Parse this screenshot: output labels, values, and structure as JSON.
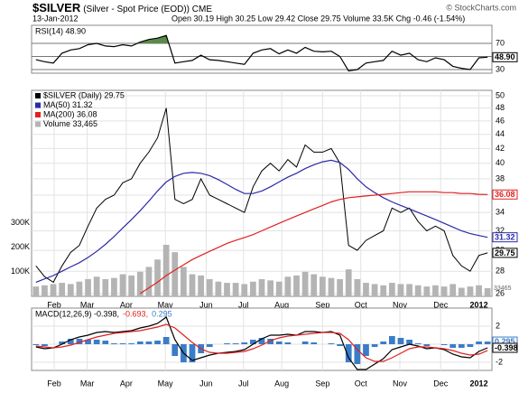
{
  "header": {
    "title": "$SILVER",
    "subtitle": "(Silver - Spot Price (EOD)) CME",
    "copyright": "© StockCharts.com",
    "date": "13-Jan-2012",
    "quote": "Open 30.19 High 30.25 Low 29.42 Close 29.75 Volume 33.5K Chg -0.46 (-1.54%)"
  },
  "chart_data": [
    {
      "type": "line",
      "categories": [
        null,
        null,
        null,
        null,
        null,
        null,
        null,
        null,
        null,
        null,
        null,
        null,
        null,
        null,
        null,
        null,
        null,
        null,
        null,
        null,
        null,
        null,
        null,
        null,
        null,
        null,
        null,
        null,
        null,
        null,
        null,
        null,
        null,
        null,
        null,
        null,
        null,
        null,
        null,
        null,
        null,
        null,
        null,
        null,
        null,
        null,
        null,
        null,
        null,
        null,
        null,
        null,
        null
      ],
      "ylim": [
        24.5,
        97.6
      ],
      "yticks": [
        30,
        50,
        70
      ],
      "grid": true,
      "fill_color": "#5a8a4a",
      "series": [
        {
          "name": "RSI(14) 48.90",
          "color": "#000000",
          "last_label": "48.90",
          "values": [
            45,
            42,
            40,
            55,
            60,
            62,
            68,
            70,
            66,
            65,
            68,
            66,
            72,
            76,
            78,
            82,
            40,
            42,
            44,
            52,
            45,
            44,
            42,
            40,
            38,
            55,
            60,
            62,
            54,
            60,
            55,
            64,
            58,
            57,
            58,
            50,
            28,
            30,
            40,
            42,
            44,
            58,
            52,
            55,
            45,
            42,
            48,
            45,
            35,
            32,
            30,
            48,
            48.9
          ]
        }
      ]
    },
    {
      "type": "line",
      "log": true,
      "categories": [
        null,
        null,
        null,
        null,
        null,
        null,
        null,
        null,
        null,
        null,
        null,
        null,
        null,
        null,
        null,
        null,
        null,
        null,
        null,
        null,
        null,
        null,
        null,
        null,
        null,
        null,
        null,
        null,
        null,
        null,
        null,
        null,
        null,
        null,
        null,
        null,
        null,
        null,
        null,
        null,
        null,
        null,
        null,
        null,
        null,
        null,
        null,
        null,
        null,
        null,
        null,
        null,
        null
      ],
      "ylim": [
        25.77,
        50.9
      ],
      "yticks": [
        26,
        28,
        30,
        32,
        34,
        36,
        38,
        40,
        42,
        44,
        46,
        48,
        50
      ],
      "y2lim": [
        0,
        840000
      ],
      "y2ticks": [
        {
          "value": 100000,
          "label": "100K"
        },
        {
          "value": 200000,
          "label": "200K"
        },
        {
          "value": 300000,
          "label": "300K"
        }
      ],
      "xticks": [
        {
          "value": 2.1,
          "label": "Feb"
        },
        {
          "value": 5.9,
          "label": "Mar"
        },
        {
          "value": 10.4,
          "label": "Apr"
        },
        {
          "value": 14.9,
          "label": "May"
        },
        {
          "value": 19.6,
          "label": "Jun"
        },
        {
          "value": 23.9,
          "label": "Jul"
        },
        {
          "value": 28.3,
          "label": "Aug"
        },
        {
          "value": 33.0,
          "label": "Sep"
        },
        {
          "value": 37.4,
          "label": "Oct"
        },
        {
          "value": 41.9,
          "label": "Nov"
        },
        {
          "value": 46.6,
          "label": "Dec"
        },
        {
          "value": 51.0,
          "label": "2012"
        }
      ],
      "grid": true,
      "series": [
        {
          "name": "$SILVER (Daily) 29.75",
          "color": "#000000",
          "last_label": "29.75",
          "values": [
            28.5,
            27.5,
            27.0,
            28.5,
            29.8,
            30.5,
            32.5,
            34.5,
            35.5,
            36.0,
            37.5,
            38.0,
            40.0,
            41.5,
            43.5,
            48.0,
            35.5,
            35.0,
            35.5,
            38.0,
            36.0,
            35.5,
            35.0,
            34.5,
            34.0,
            37.0,
            39.0,
            40.0,
            39.0,
            40.5,
            39.5,
            42.5,
            41.5,
            41.5,
            42.0,
            40.0,
            30.5,
            30.0,
            31.0,
            31.5,
            32.0,
            34.5,
            34.0,
            34.5,
            33.0,
            32.0,
            32.5,
            32.0,
            29.5,
            28.5,
            28.0,
            29.5,
            29.75
          ]
        },
        {
          "name": "MA(50) 31.32",
          "color": "#2a2aa8",
          "last_label": "31.32",
          "values": [
            27.0,
            27.3,
            27.6,
            28.0,
            28.4,
            28.8,
            29.3,
            29.9,
            30.6,
            31.4,
            32.3,
            33.2,
            34.2,
            35.3,
            36.5,
            37.6,
            38.3,
            38.7,
            38.8,
            38.7,
            38.4,
            37.9,
            37.3,
            36.7,
            36.2,
            36.2,
            36.5,
            37.0,
            37.6,
            38.2,
            38.7,
            39.3,
            39.8,
            40.2,
            40.4,
            40.1,
            39.2,
            38.0,
            37.0,
            36.3,
            35.7,
            35.2,
            34.8,
            34.4,
            34.0,
            33.6,
            33.2,
            32.8,
            32.4,
            32.0,
            31.7,
            31.5,
            31.32
          ]
        },
        {
          "name": "MA(200) 36.08",
          "color": "#e02020",
          "last_label": "36.08",
          "values": [
            null,
            null,
            null,
            null,
            null,
            null,
            null,
            null,
            null,
            null,
            null,
            null,
            26.0,
            26.5,
            27.0,
            27.6,
            28.1,
            28.6,
            29.1,
            29.5,
            29.9,
            30.3,
            30.7,
            31.0,
            31.3,
            31.6,
            32.0,
            32.4,
            32.8,
            33.2,
            33.6,
            34.0,
            34.4,
            34.8,
            35.2,
            35.5,
            35.7,
            35.8,
            35.9,
            36.0,
            36.1,
            36.2,
            36.3,
            36.4,
            36.4,
            36.4,
            36.4,
            36.3,
            36.3,
            36.2,
            36.2,
            36.1,
            36.08
          ]
        },
        {
          "name": "Volume 33,465",
          "color": "#b4b4b4",
          "type": "bar",
          "axis": "y2",
          "last_label": "33465",
          "values": [
            40000,
            45000,
            50000,
            55000,
            50000,
            60000,
            70000,
            80000,
            70000,
            75000,
            90000,
            85000,
            100000,
            120000,
            150000,
            210000,
            180000,
            120000,
            90000,
            85000,
            70000,
            60000,
            55000,
            55000,
            50000,
            60000,
            70000,
            65000,
            60000,
            80000,
            85000,
            100000,
            90000,
            80000,
            75000,
            70000,
            110000,
            70000,
            55000,
            50000,
            45000,
            55000,
            50000,
            50000,
            45000,
            40000,
            45000,
            40000,
            50000,
            35000,
            40000,
            45000,
            33465
          ]
        }
      ]
    },
    {
      "type": "line",
      "categories": [
        null,
        null,
        null,
        null,
        null,
        null,
        null,
        null,
        null,
        null,
        null,
        null,
        null,
        null,
        null,
        null,
        null,
        null,
        null,
        null,
        null,
        null,
        null,
        null,
        null,
        null,
        null,
        null,
        null,
        null,
        null,
        null,
        null,
        null,
        null,
        null,
        null,
        null,
        null,
        null,
        null,
        null,
        null,
        null,
        null,
        null,
        null,
        null,
        null,
        null,
        null,
        null,
        null
      ],
      "ylim": [
        -2.9,
        4
      ],
      "yticks": [
        -2,
        0,
        2
      ],
      "xticks": [
        {
          "value": 2.1,
          "label": "Feb"
        },
        {
          "value": 5.9,
          "label": "Mar"
        },
        {
          "value": 10.4,
          "label": "Apr"
        },
        {
          "value": 14.9,
          "label": "May"
        },
        {
          "value": 19.6,
          "label": "Jun"
        },
        {
          "value": 23.9,
          "label": "Jul"
        },
        {
          "value": 28.3,
          "label": "Aug"
        },
        {
          "value": 33.0,
          "label": "Sep"
        },
        {
          "value": 37.4,
          "label": "Oct"
        },
        {
          "value": 41.9,
          "label": "Nov"
        },
        {
          "value": 46.6,
          "label": "Dec"
        },
        {
          "value": 51.0,
          "label": "2012"
        }
      ],
      "grid": true,
      "series": [
        {
          "name": "MACD(12,26,9) -0.398,",
          "color": "#000000",
          "last_label": "-0.398",
          "values": [
            -0.3,
            -0.5,
            -0.4,
            0,
            0.5,
            0.8,
            1.0,
            1.3,
            1.4,
            1.3,
            1.4,
            1.5,
            1.8,
            2.0,
            2.3,
            3.0,
            0.5,
            -1.0,
            -1.8,
            -1.5,
            -1.2,
            -1.0,
            -0.9,
            -0.8,
            -0.6,
            0,
            0.6,
            1.0,
            1.0,
            1.1,
            1.0,
            1.4,
            1.4,
            1.3,
            1.4,
            1.0,
            -1.5,
            -2.8,
            -2.8,
            -2.2,
            -1.6,
            -0.6,
            -0.3,
            0,
            -0.2,
            -0.5,
            -0.4,
            -0.6,
            -1.1,
            -1.4,
            -1.5,
            -0.8,
            -0.398
          ]
        },
        {
          "name": "-0.693,",
          "color": "#e02020",
          "values": [
            -0.2,
            -0.3,
            -0.4,
            -0.3,
            -0.1,
            0.2,
            0.5,
            0.8,
            1.0,
            1.2,
            1.3,
            1.4,
            1.5,
            1.7,
            1.9,
            2.2,
            1.8,
            1.0,
            0.2,
            -0.5,
            -0.9,
            -1.0,
            -1.0,
            -0.9,
            -0.8,
            -0.5,
            -0.1,
            0.4,
            0.7,
            0.9,
            1.0,
            1.1,
            1.2,
            1.3,
            1.3,
            1.2,
            0.5,
            -0.6,
            -1.5,
            -1.9,
            -1.9,
            -1.5,
            -1.0,
            -0.5,
            -0.3,
            -0.3,
            -0.4,
            -0.5,
            -0.7,
            -1.0,
            -1.2,
            -1.1,
            -0.693
          ]
        },
        {
          "name": "0.295",
          "color": "#3a7cc8",
          "type": "bar",
          "last_label": "0.295",
          "values": [
            -0.1,
            -0.2,
            0,
            0.3,
            0.6,
            0.6,
            0.5,
            0.5,
            0.4,
            0.1,
            0.1,
            0.1,
            0.3,
            0.3,
            0.4,
            0.8,
            -1.3,
            -2.0,
            -2.0,
            -1.0,
            -0.3,
            0,
            0.1,
            0.1,
            0.2,
            0.5,
            0.7,
            0.6,
            0.3,
            0.2,
            0,
            0.3,
            0.2,
            0,
            0.1,
            -0.2,
            -2.0,
            -2.2,
            -1.3,
            -0.3,
            0.3,
            0.9,
            0.7,
            0.5,
            0.1,
            -0.2,
            0,
            -0.1,
            -0.4,
            -0.4,
            -0.3,
            0.3,
            0.295
          ]
        }
      ]
    }
  ]
}
